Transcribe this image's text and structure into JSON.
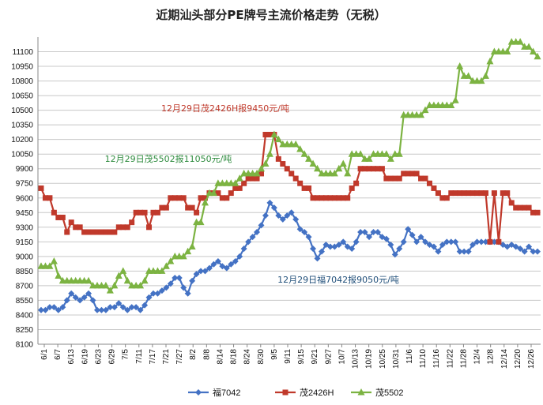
{
  "chart_data": {
    "type": "line",
    "title": "近期汕头部分PE牌号主流价格走势（无税）",
    "xlabel": "",
    "ylabel": "",
    "ylim": [
      8100,
      11250
    ],
    "yticks": [
      8100,
      8250,
      8400,
      8550,
      8700,
      8850,
      9000,
      9150,
      9300,
      9450,
      9600,
      9750,
      9900,
      10050,
      10200,
      10350,
      10500,
      10650,
      10800,
      10950,
      11100
    ],
    "xticks": [
      "6/1",
      "6/7",
      "6/13",
      "6/19",
      "6/23",
      "6/29",
      "7/5",
      "7/11",
      "7/17",
      "7/21",
      "7/27",
      "8/2",
      "8/8",
      "8/14",
      "8/18",
      "8/24",
      "8/30",
      "9/5",
      "9/11",
      "9/15",
      "9/21",
      "9/27",
      "10/7",
      "10/13",
      "10/19",
      "10/25",
      "10/31",
      "11/6",
      "11/10",
      "11/16",
      "11/22",
      "11/28",
      "12/4",
      "12/8",
      "12/14",
      "12/20",
      "12/26"
    ],
    "grid": true,
    "legend_position": "bottom",
    "series": [
      {
        "name": "福7042",
        "color": "#4472C4",
        "values": [
          8450,
          8450,
          8480,
          8480,
          8450,
          8480,
          8550,
          8620,
          8580,
          8550,
          8580,
          8620,
          8550,
          8450,
          8450,
          8450,
          8480,
          8480,
          8520,
          8480,
          8450,
          8480,
          8480,
          8450,
          8500,
          8580,
          8620,
          8620,
          8650,
          8680,
          8720,
          8780,
          8780,
          8680,
          8620,
          8750,
          8820,
          8850,
          8850,
          8880,
          8920,
          8950,
          8900,
          8880,
          8920,
          8950,
          9000,
          9080,
          9150,
          9200,
          9250,
          9320,
          9420,
          9550,
          9500,
          9420,
          9380,
          9420,
          9450,
          9380,
          9280,
          9250,
          9200,
          9080,
          8980,
          9050,
          9120,
          9100,
          9100,
          9120,
          9150,
          9100,
          9080,
          9150,
          9250,
          9250,
          9200,
          9250,
          9250,
          9200,
          9180,
          9120,
          9020,
          9080,
          9150,
          9280,
          9220,
          9150,
          9200,
          9150,
          9120,
          9100,
          9050,
          9120,
          9150,
          9150,
          9150,
          9050,
          9050,
          9050,
          9120,
          9150,
          9150,
          9150,
          9150,
          9150,
          9150,
          9120,
          9100,
          9120,
          9100,
          9080,
          9050,
          9100,
          9050,
          9050
        ]
      },
      {
        "name": "茂2426H",
        "color": "#C0392B",
        "values": [
          9700,
          9600,
          9600,
          9450,
          9400,
          9400,
          9250,
          9350,
          9300,
          9300,
          9250,
          9250,
          9250,
          9250,
          9250,
          9250,
          9250,
          9250,
          9300,
          9300,
          9300,
          9350,
          9450,
          9450,
          9450,
          9300,
          9450,
          9450,
          9500,
          9500,
          9600,
          9600,
          9600,
          9600,
          9500,
          9500,
          9450,
          9600,
          9600,
          9650,
          9650,
          9650,
          9600,
          9600,
          9650,
          9700,
          9700,
          9750,
          9800,
          9800,
          9800,
          9850,
          10250,
          10250,
          10250,
          10000,
          9950,
          9900,
          9850,
          9800,
          9750,
          9700,
          9700,
          9600,
          9600,
          9600,
          9600,
          9600,
          9600,
          9600,
          9600,
          9600,
          9700,
          9750,
          9900,
          9900,
          9900,
          9900,
          9900,
          9900,
          9800,
          9800,
          9800,
          9800,
          9850,
          9850,
          9850,
          9850,
          9800,
          9800,
          9750,
          9700,
          9650,
          9600,
          9600,
          9650,
          9650,
          9650,
          9650,
          9650,
          9650,
          9650,
          9650,
          9650,
          9150,
          9650,
          9150,
          9650,
          9650,
          9550,
          9500,
          9500,
          9500,
          9500,
          9450,
          9450
        ]
      },
      {
        "name": "茂5502",
        "color": "#7CB342",
        "values": [
          8900,
          8900,
          8900,
          8950,
          8800,
          8750,
          8750,
          8750,
          8750,
          8750,
          8750,
          8750,
          8700,
          8700,
          8700,
          8700,
          8650,
          8700,
          8800,
          8850,
          8750,
          8700,
          8700,
          8700,
          8750,
          8850,
          8850,
          8850,
          8850,
          8900,
          8950,
          9000,
          9000,
          9000,
          9050,
          9100,
          9350,
          9350,
          9550,
          9650,
          9650,
          9750,
          9750,
          9750,
          9750,
          9750,
          9800,
          9850,
          9850,
          9850,
          9850,
          9900,
          9950,
          10050,
          10250,
          10200,
          10150,
          10150,
          10150,
          10150,
          10100,
          10050,
          10000,
          9950,
          9900,
          9850,
          9850,
          9850,
          9850,
          9900,
          9950,
          9850,
          10050,
          10050,
          10050,
          10000,
          10000,
          10050,
          10050,
          10050,
          10050,
          10000,
          10050,
          10050,
          10450,
          10450,
          10450,
          10450,
          10450,
          10500,
          10550,
          10550,
          10550,
          10550,
          10550,
          10550,
          10600,
          10950,
          10850,
          10850,
          10800,
          10800,
          10800,
          10850,
          11000,
          11100,
          11100,
          11100,
          11100,
          11200,
          11200,
          11200,
          11150,
          11150,
          11100,
          11050
        ]
      }
    ],
    "annotations": [
      {
        "text": "12月29日茂2426H报9450元/吨",
        "color": "#C0392B"
      },
      {
        "text": "12月29日茂5502报11050元/吨",
        "color": "#2E8B3E"
      },
      {
        "text": "12月29日福7042报9050元/吨",
        "color": "#1F4E79"
      }
    ]
  }
}
